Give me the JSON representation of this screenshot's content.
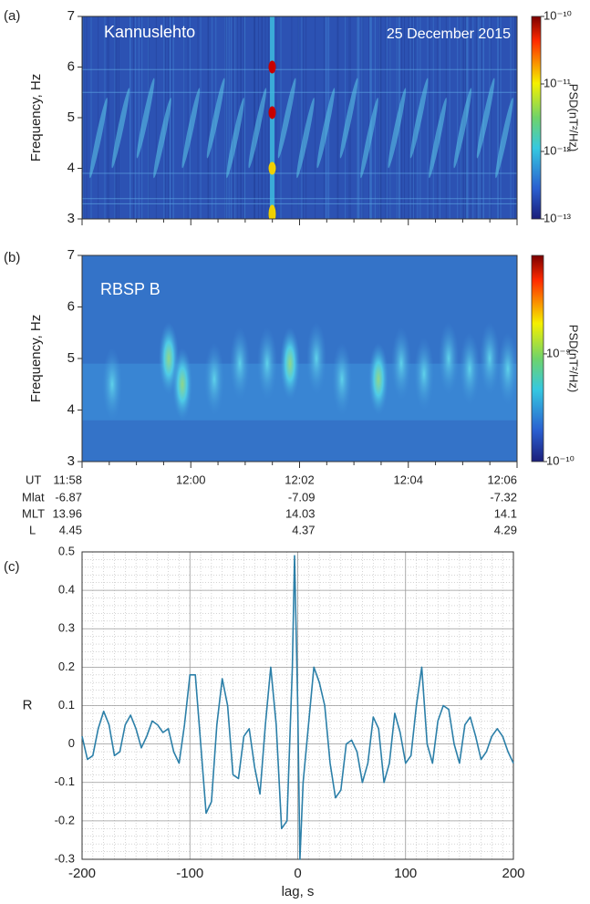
{
  "chart_data": [
    {
      "type": "spectrogram",
      "panel_label": "(a)",
      "station": "Kannuslehto",
      "date": "25 December 2015",
      "ylabel": "Frequency, Hz",
      "ylim": [
        3,
        7
      ],
      "yticks": [
        3,
        4,
        5,
        6,
        7
      ],
      "colorbar": {
        "label": "PSD(nT²/Hz)",
        "log": true,
        "clim": [
          1e-13,
          1e-10
        ],
        "ticks": [
          {
            "value": 1e-13,
            "label": "10⁻¹³"
          },
          {
            "value": 1e-12,
            "label": "10⁻¹²"
          },
          {
            "value": 1e-11,
            "label": "10⁻¹¹"
          },
          {
            "value": 1e-10,
            "label": "10⁻¹⁰"
          }
        ]
      }
    },
    {
      "type": "spectrogram",
      "panel_label": "(b)",
      "spacecraft": "RBSP B",
      "ylabel": "Frequency, Hz",
      "ylim": [
        3,
        7
      ],
      "yticks": [
        3,
        4,
        5,
        6,
        7
      ],
      "x_label": "UT",
      "xticks": [
        "11:58",
        "12:00",
        "12:02",
        "12:04",
        "12:06"
      ],
      "ephemeris": [
        {
          "name": "Mlat",
          "values": [
            -6.87,
            -7.09,
            -7.32
          ]
        },
        {
          "name": "MLT",
          "values": [
            13.96,
            14.03,
            14.1
          ]
        },
        {
          "name": "L",
          "values": [
            4.45,
            4.37,
            4.29
          ]
        }
      ],
      "colorbar": {
        "label": "PSD(nT²/Hz)",
        "log": true,
        "clim": [
          1e-10,
          8.2e-09
        ],
        "ticks": [
          {
            "value": 1e-10,
            "label": "10⁻¹⁰"
          },
          {
            "value": 1e-09,
            "label": "10⁻⁹"
          }
        ]
      }
    },
    {
      "type": "line",
      "panel_label": "(c)",
      "xlabel": "lag, s",
      "ylabel": "R",
      "xlim": [
        -200,
        200
      ],
      "xticks": [
        -200,
        -100,
        0,
        100,
        200
      ],
      "ylim": [
        -0.3,
        0.5
      ],
      "yticks": [
        -0.3,
        -0.2,
        -0.1,
        0,
        0.1,
        0.2,
        0.3,
        0.4,
        0.5
      ],
      "grid": true,
      "color": "#2b7fa8",
      "x": [
        -200,
        -195,
        -190,
        -185,
        -180,
        -175,
        -170,
        -165,
        -160,
        -155,
        -150,
        -145,
        -140,
        -135,
        -130,
        -125,
        -120,
        -115,
        -110,
        -105,
        -100,
        -95,
        -90,
        -85,
        -80,
        -75,
        -70,
        -65,
        -60,
        -55,
        -50,
        -45,
        -40,
        -35,
        -30,
        -25,
        -20,
        -15,
        -10,
        -5,
        -3,
        0,
        2,
        5,
        10,
        15,
        20,
        25,
        30,
        35,
        40,
        45,
        50,
        55,
        60,
        65,
        70,
        75,
        80,
        85,
        90,
        95,
        100,
        105,
        110,
        115,
        120,
        125,
        130,
        135,
        140,
        145,
        150,
        155,
        160,
        165,
        170,
        175,
        180,
        185,
        190,
        195,
        200
      ],
      "values": [
        0.02,
        -0.04,
        -0.03,
        0.04,
        0.085,
        0.05,
        -0.03,
        -0.02,
        0.05,
        0.075,
        0.04,
        -0.01,
        0.02,
        0.06,
        0.05,
        0.03,
        0.04,
        -0.02,
        -0.05,
        0.05,
        0.18,
        0.18,
        0.0,
        -0.18,
        -0.15,
        0.05,
        0.17,
        0.1,
        -0.08,
        -0.09,
        0.02,
        0.04,
        -0.06,
        -0.13,
        0.05,
        0.2,
        0.05,
        -0.22,
        -0.2,
        0.2,
        0.49,
        0.1,
        -0.3,
        -0.1,
        0.05,
        0.2,
        0.16,
        0.1,
        -0.05,
        -0.14,
        -0.12,
        0.0,
        0.01,
        -0.02,
        -0.1,
        -0.05,
        0.07,
        0.04,
        -0.1,
        -0.05,
        0.08,
        0.03,
        -0.05,
        -0.03,
        0.1,
        0.2,
        0.0,
        -0.05,
        0.06,
        0.1,
        0.09,
        0.0,
        -0.05,
        0.05,
        0.07,
        0.02,
        -0.04,
        -0.02,
        0.02,
        0.04,
        0.02,
        -0.02,
        -0.05
      ]
    }
  ]
}
